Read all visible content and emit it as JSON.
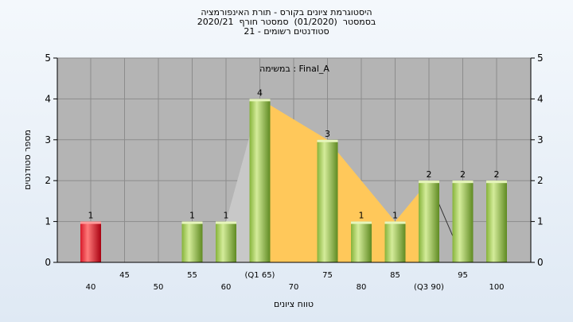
{
  "chart_data": {
    "type": "bar",
    "title_lines": [
      "היסטוגרמת ציונים בקורס - תורת האינפורמציה",
      "בסמסטר  (01/2020)  סמסטר חורף  2020/21",
      "סטודנטים רשומים - 21"
    ],
    "subtitle": "במשימה : Final_A",
    "xlabel": "טווח ציונים",
    "ylabel": "מספר סטודנטים",
    "ylim": [
      0,
      5
    ],
    "yticks": [
      "0",
      "1",
      "2",
      "3",
      "4",
      "5"
    ],
    "x_tick_labels": [
      {
        "x": 40,
        "label": "40",
        "row": 2
      },
      {
        "x": 45,
        "label": "45",
        "row": 1
      },
      {
        "x": 50,
        "label": "50",
        "row": 2
      },
      {
        "x": 55,
        "label": "55",
        "row": 1
      },
      {
        "x": 60,
        "label": "60",
        "row": 2
      },
      {
        "x": 65,
        "label": "(Q1 65)",
        "row": 1
      },
      {
        "x": 70,
        "label": "70",
        "row": 2
      },
      {
        "x": 75,
        "label": "75",
        "row": 1
      },
      {
        "x": 80,
        "label": "80",
        "row": 2
      },
      {
        "x": 85,
        "label": "85",
        "row": 1
      },
      {
        "x": 90,
        "label": "(Q3 90)",
        "row": 2
      },
      {
        "x": 95,
        "label": "95",
        "row": 1
      },
      {
        "x": 100,
        "label": "100",
        "row": 2
      }
    ],
    "bars": [
      {
        "x": 40,
        "value": 1,
        "label": "1",
        "color": "red"
      },
      {
        "x": 55,
        "value": 1,
        "label": "1",
        "color": "green"
      },
      {
        "x": 60,
        "value": 1,
        "label": "1",
        "color": "green"
      },
      {
        "x": 65,
        "value": 4,
        "label": "4",
        "color": "green"
      },
      {
        "x": 75,
        "value": 3,
        "label": "3",
        "color": "green"
      },
      {
        "x": 80,
        "value": 1,
        "label": "1",
        "color": "green"
      },
      {
        "x": 85,
        "value": 1,
        "label": "1",
        "color": "green"
      },
      {
        "x": 90,
        "value": 2,
        "label": "2",
        "color": "green"
      },
      {
        "x": 95,
        "value": 2,
        "label": "2",
        "color": "green"
      },
      {
        "x": 100,
        "value": 2,
        "label": "2",
        "color": "green"
      }
    ],
    "quartile_area": {
      "color": "#ffc85a",
      "points": [
        [
          65,
          0
        ],
        [
          65,
          4
        ],
        [
          75,
          3
        ],
        [
          85,
          1
        ],
        [
          90,
          2
        ],
        [
          90,
          0
        ]
      ]
    },
    "grey_area": {
      "color": "#c8c8c8",
      "points": [
        [
          60,
          0
        ],
        [
          60,
          1
        ],
        [
          65,
          4
        ],
        [
          65,
          0
        ]
      ]
    },
    "dark_line": [
      [
        90,
        2
      ],
      [
        93.5,
        0.65
      ]
    ],
    "colors": {
      "plot_bg": "#b4b4b4",
      "grid": "#8c8c8c",
      "bar_green_light": "#d4ec9a",
      "bar_green_dark": "#6f9a2a",
      "bar_red_light": "#ff7a7a",
      "bar_red_dark": "#b80012"
    }
  }
}
